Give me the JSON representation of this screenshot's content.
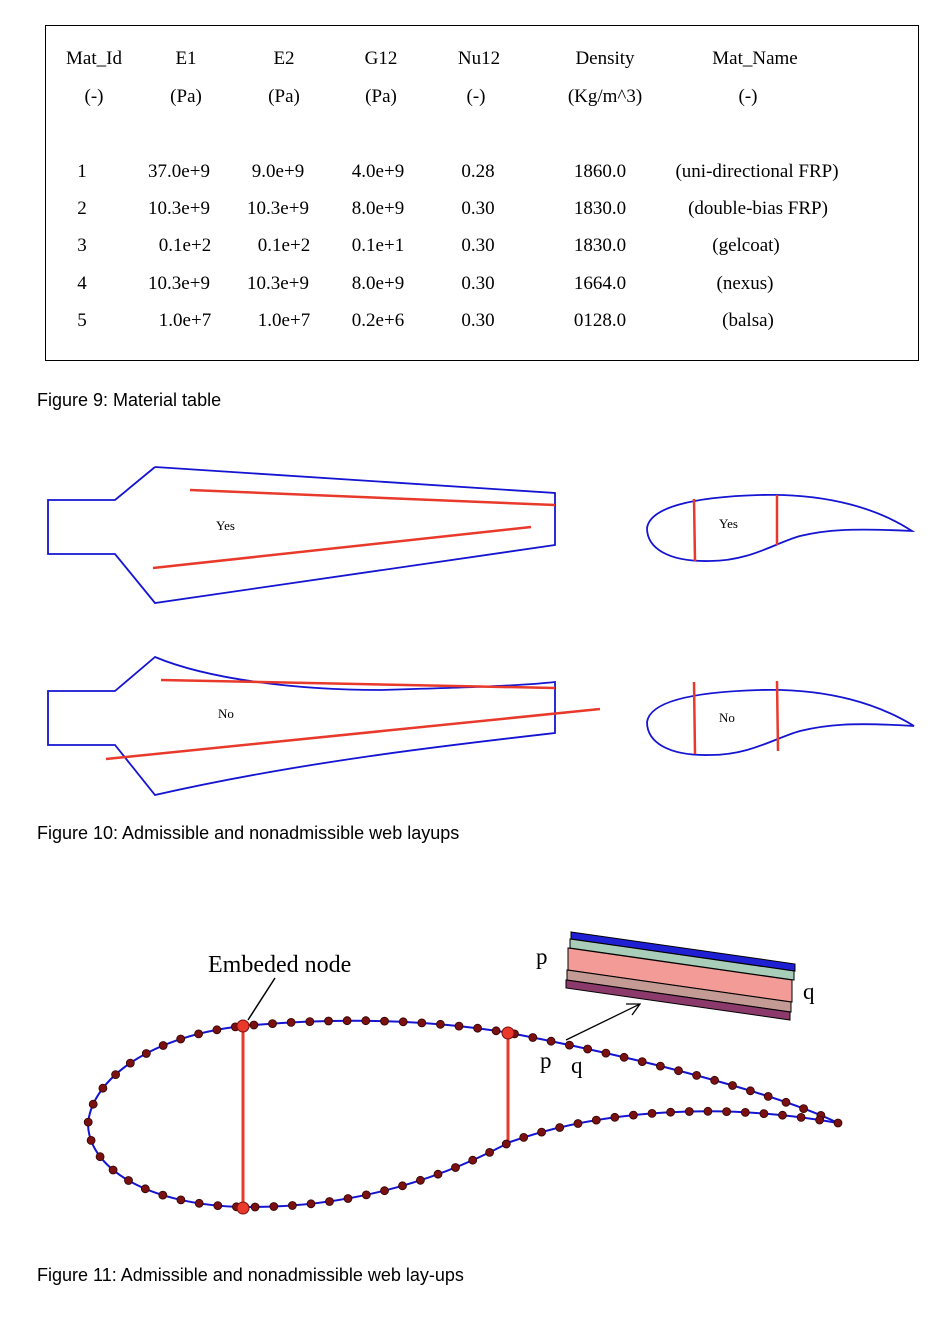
{
  "material_table": {
    "headers": [
      "Mat_Id",
      "E1",
      "E2",
      "G12",
      "Nu12",
      "Density",
      "Mat_Name"
    ],
    "units": [
      "(-)",
      "(Pa)",
      "(Pa)",
      "(Pa)",
      "(-)",
      "(Kg/m^3)",
      "(-)"
    ],
    "rows": [
      [
        "1",
        "37.0e+9",
        "9.0e+9",
        "4.0e+9",
        "0.28",
        "1860.0",
        "(uni-directional FRP)"
      ],
      [
        "2",
        "10.3e+9",
        "10.3e+9",
        "8.0e+9",
        "0.30",
        "1830.0",
        "(double-bias FRP)"
      ],
      [
        "3",
        "0.1e+2",
        "0.1e+2",
        "0.1e+1",
        "0.30",
        "1830.0",
        "(gelcoat)"
      ],
      [
        "4",
        "10.3e+9",
        "10.3e+9",
        "8.0e+9",
        "0.30",
        "1664.0",
        "(nexus)"
      ],
      [
        "5",
        "1.0e+7",
        "1.0e+7",
        "0.2e+6",
        "0.30",
        "0128.0",
        "(balsa)"
      ]
    ]
  },
  "figure9": {
    "caption": "Figure 9: Material table"
  },
  "figure10": {
    "caption": "Figure 10: Admissible and nonadmissible web layups",
    "label_yes": "Yes",
    "label_no": "No"
  },
  "figure11": {
    "caption": "Figure 11: Admissible and nonadmissible web lay-ups",
    "embedded_label": "Embeded node",
    "label_p": "p",
    "label_q": "q"
  },
  "colors": {
    "outline": "#1414d2",
    "web": "#e8392b",
    "node": "#7a1010",
    "embedded_node": "#e8392b",
    "layer_top": "#1f1fd4",
    "layer_green": "#a8cdb9",
    "layer_pink": "#f39b96",
    "layer_mauve": "#c49a95",
    "layer_purple": "#8b3a6b"
  }
}
